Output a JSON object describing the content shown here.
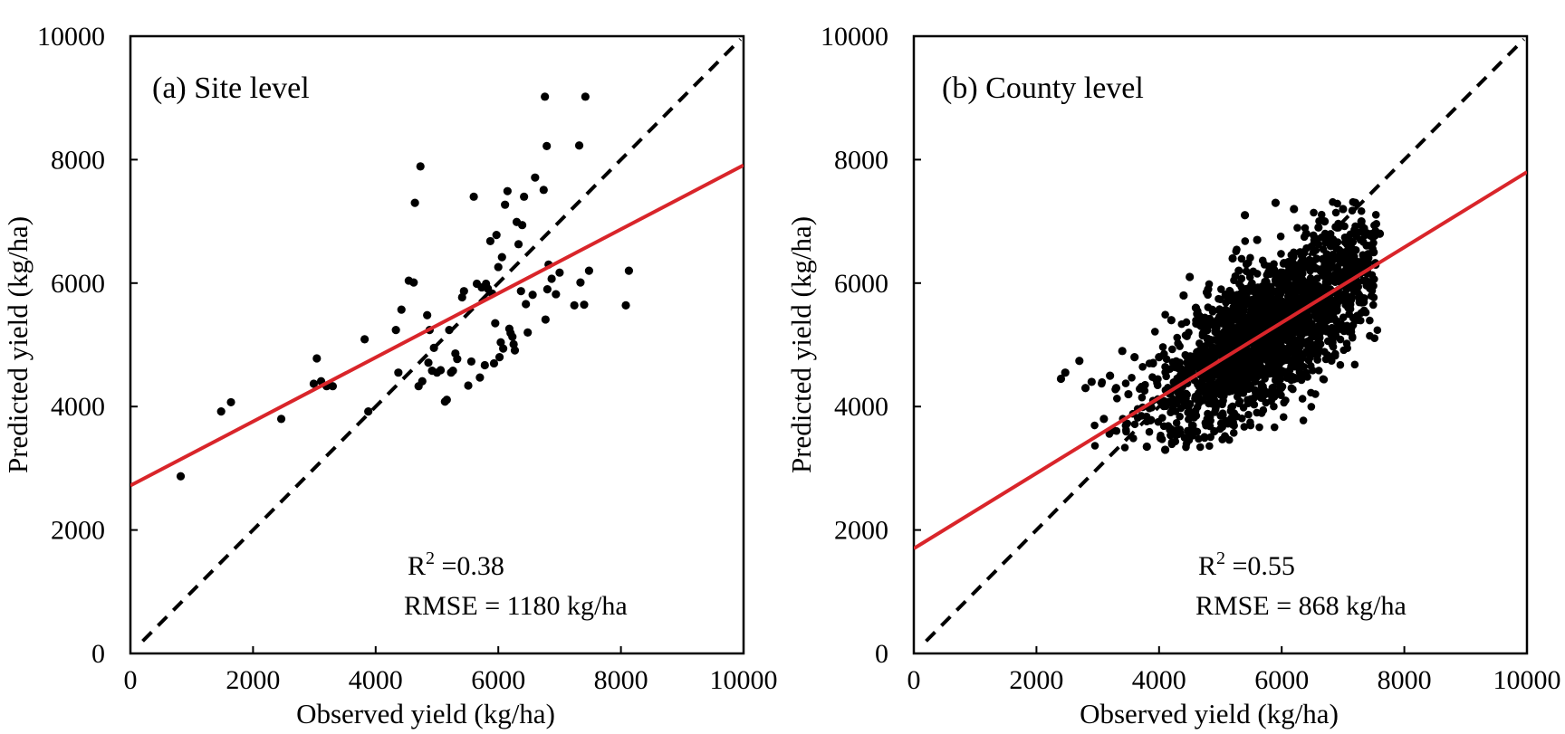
{
  "chart_data": [
    {
      "type": "scatter",
      "panel_label": "(a) Site level",
      "xlabel": "Observed yield (kg/ha)",
      "ylabel": "Predicted yield (kg/ha)",
      "xlim": [
        0,
        10000
      ],
      "ylim": [
        0,
        10000
      ],
      "xticks": [
        "0",
        "2000",
        "4000",
        "6000",
        "8000",
        "10000"
      ],
      "yticks": [
        "0",
        "2000",
        "4000",
        "6000",
        "8000",
        "10000"
      ],
      "r2_label": "R",
      "r2_sup": "2",
      "r2_value": " =0.38",
      "rmse_text": "RMSE = 1180 kg/ha",
      "colors": {
        "points": "#000000",
        "fit_line": "#d9252a",
        "one_to_one": "#000000"
      },
      "fit_line": {
        "intercept": 2720,
        "slope": 0.519
      },
      "one_to_one_line": {
        "from": [
          200,
          200
        ],
        "to": [
          9950,
          9950
        ],
        "style": "dashed"
      },
      "series": [
        {
          "x": [
            820,
            1480,
            1640,
            2460,
            2990,
            3040,
            3110,
            3200,
            3300,
            3820,
            3880,
            4330,
            4370,
            4420,
            4540,
            4620,
            4640,
            4700,
            4730,
            4760,
            4840,
            4860,
            4880,
            4920,
            4950,
            5000,
            5060,
            5130,
            5160,
            5200,
            5230,
            5260,
            5300,
            5330,
            5410,
            5440,
            5510,
            5560,
            5600,
            5650,
            5700,
            5730,
            5780,
            5800,
            5830,
            5870,
            5900,
            5930,
            5950,
            5970,
            6000,
            6020,
            6040,
            6060,
            6080,
            6110,
            6150,
            6180,
            6200,
            6230,
            6250,
            6270,
            6300,
            6330,
            6370,
            6390,
            6420,
            6450,
            6480,
            6560,
            6600,
            6740,
            6760,
            6770,
            6790,
            6800,
            6820,
            6870,
            6940,
            7000,
            7240,
            7320,
            7340,
            7400,
            7420,
            7480,
            8080,
            8130
          ],
          "y": [
            2870,
            3920,
            4070,
            3800,
            4370,
            4780,
            4410,
            4330,
            4330,
            5090,
            3920,
            5240,
            4550,
            5570,
            6040,
            6010,
            7300,
            4330,
            7890,
            4410,
            5480,
            4710,
            5240,
            4580,
            4950,
            4550,
            4590,
            4080,
            4110,
            5240,
            4550,
            4580,
            4860,
            4770,
            5770,
            5870,
            4340,
            4730,
            7400,
            5990,
            4470,
            5930,
            4670,
            5990,
            5910,
            6680,
            5830,
            4700,
            5350,
            6780,
            6260,
            4800,
            5040,
            6420,
            4940,
            7270,
            7490,
            5260,
            5190,
            5130,
            5010,
            4910,
            6990,
            6630,
            5870,
            6940,
            7400,
            5660,
            5200,
            5810,
            7710,
            7510,
            9020,
            5410,
            8220,
            5900,
            6300,
            6070,
            5820,
            6170,
            5640,
            8230,
            6010,
            5650,
            9020,
            6200,
            5640,
            6200
          ]
        }
      ]
    },
    {
      "type": "scatter",
      "panel_label": "(b) County level",
      "xlabel": "Observed yield (kg/ha)",
      "ylabel": "Predicted yield (kg/ha)",
      "xlim": [
        0,
        10000
      ],
      "ylim": [
        0,
        10000
      ],
      "xticks": [
        "0",
        "2000",
        "4000",
        "6000",
        "8000",
        "10000"
      ],
      "yticks": [
        "0",
        "2000",
        "4000",
        "6000",
        "8000",
        "10000"
      ],
      "r2_label": "R",
      "r2_sup": "2",
      "r2_value": " =0.55",
      "rmse_text": "RMSE = 868 kg/ha",
      "colors": {
        "points": "#000000",
        "fit_line": "#d9252a",
        "one_to_one": "#000000"
      },
      "fit_line": {
        "intercept": 1700,
        "slope": 0.61
      },
      "one_to_one_line": {
        "from": [
          200,
          200
        ],
        "to": [
          9950,
          9950
        ],
        "style": "dashed"
      },
      "cloud": {
        "description_point_count": 2000,
        "mean_x": 5800,
        "sd_x": 950,
        "x_range": [
          2400,
          7600
        ],
        "y_fit_intercept": 1700,
        "y_fit_slope": 0.61,
        "sd_y_resid": 560,
        "y_range": [
          3300,
          7400
        ]
      },
      "series": [
        {
          "x": [
            2400,
            2470,
            2700,
            2800,
            2900,
            3100,
            3200,
            3300,
            3400,
            3500,
            3600,
            3800,
            3900,
            4000,
            4100,
            4200,
            4300,
            4400,
            4500,
            4600,
            4700,
            4800,
            4900,
            5000,
            5100,
            5200,
            5300,
            5400,
            5500,
            5600,
            5700,
            5800,
            5900,
            6000,
            6100,
            6200,
            6300,
            6400,
            6500,
            6600,
            6700,
            6800,
            6900,
            7000,
            7100,
            7200,
            7300,
            7400,
            7500,
            7600
          ],
          "y": [
            4450,
            4550,
            4740,
            4300,
            4400,
            3800,
            4500,
            4300,
            4900,
            4200,
            4800,
            3350,
            4700,
            4800,
            3300,
            5400,
            4100,
            5800,
            6100,
            5600,
            4400,
            5900,
            3600,
            4300,
            5800,
            6400,
            6200,
            7100,
            5900,
            6700,
            5500,
            5000,
            7300,
            5700,
            6000,
            7200,
            6500,
            6800,
            6300,
            6900,
            7000,
            6600,
            6900,
            7200,
            6400,
            7300,
            7000,
            6300,
            6500,
            6800
          ]
        }
      ]
    }
  ]
}
